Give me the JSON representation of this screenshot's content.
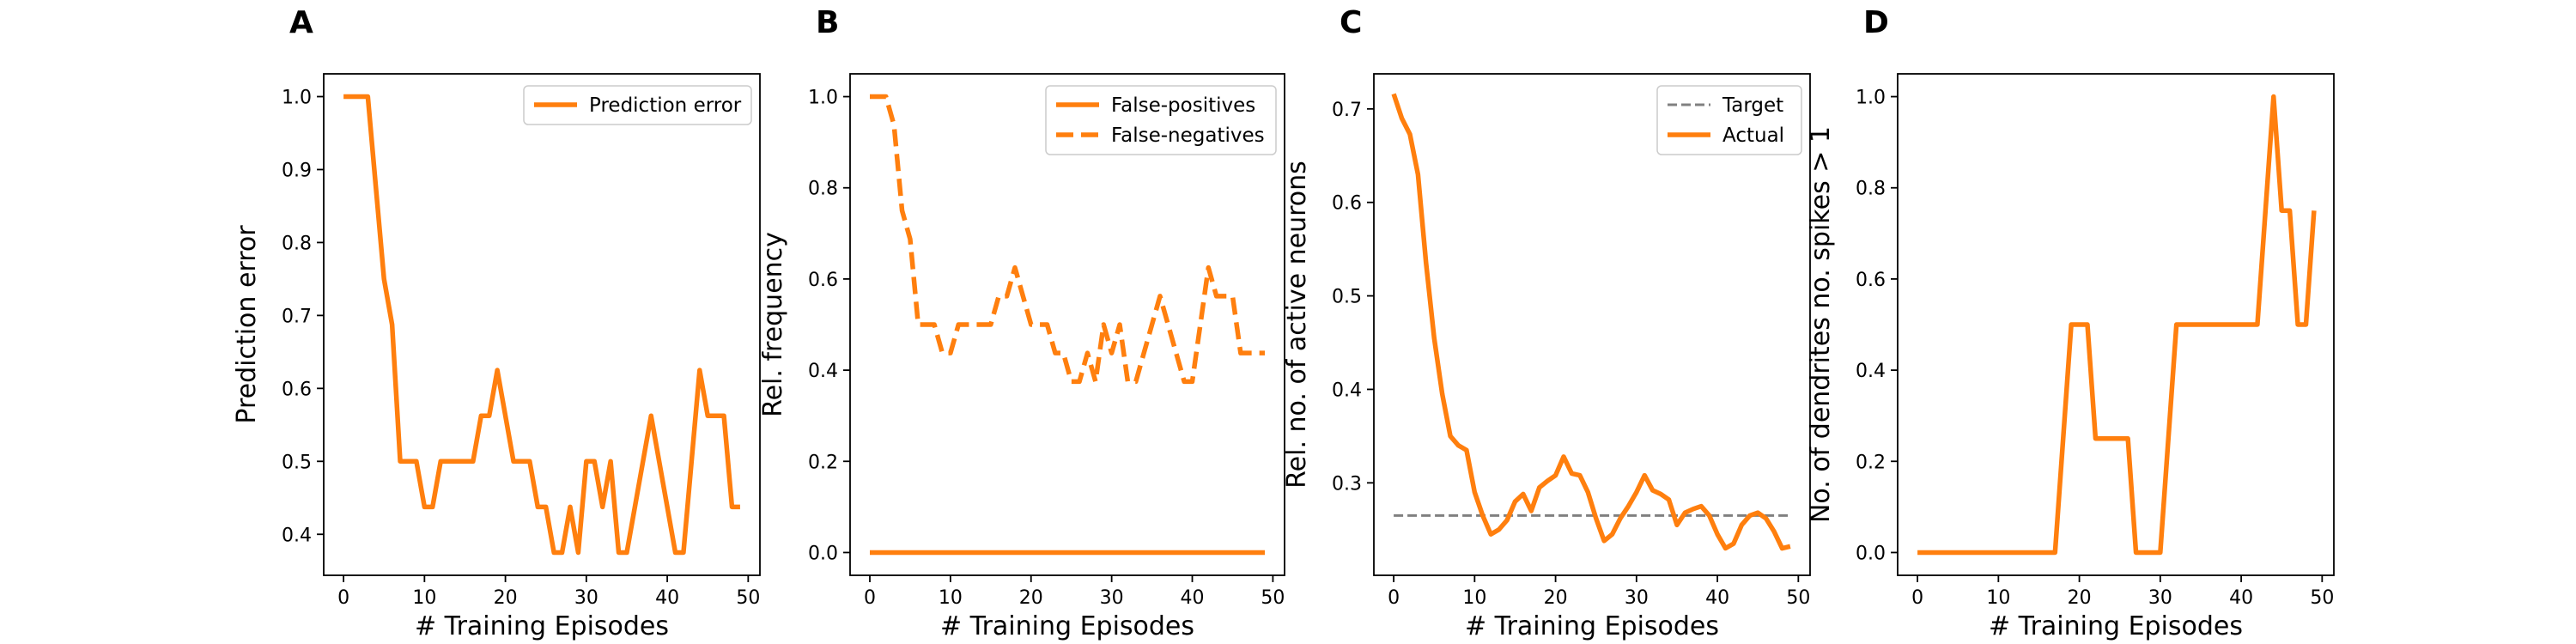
{
  "colors": {
    "orange": "#ff7f0e",
    "target_gray": "#808080",
    "axis": "#000000",
    "legend_border": "#cccccc"
  },
  "chart_data": [
    {
      "type": "line",
      "panel": "A",
      "xlabel": "# Training Episodes",
      "ylabel": "Prediction error",
      "xlim": [
        -2.45,
        51.45
      ],
      "ylim": [
        0.3438,
        1.0312
      ],
      "xticks": [
        0,
        10,
        20,
        30,
        40,
        50
      ],
      "yticks": [
        0.4,
        0.5,
        0.6,
        0.7,
        0.8,
        0.9,
        1.0
      ],
      "ytick_labels": [
        "0.4",
        "0.5",
        "0.6",
        "0.7",
        "0.8",
        "0.9",
        "1.0"
      ],
      "legend": "upper right",
      "series": [
        {
          "name": "Prediction error",
          "style": "solid",
          "color": "#ff7f0e",
          "x": [
            0,
            1,
            2,
            3,
            4,
            5,
            6,
            7,
            8,
            9,
            10,
            11,
            12,
            13,
            14,
            15,
            16,
            17,
            18,
            19,
            20,
            21,
            22,
            23,
            24,
            25,
            26,
            27,
            28,
            29,
            30,
            31,
            32,
            33,
            34,
            35,
            36,
            37,
            38,
            39,
            40,
            41,
            42,
            43,
            44,
            45,
            46,
            47,
            48,
            49
          ],
          "y": [
            1.0,
            1.0,
            1.0,
            1.0,
            0.875,
            0.75,
            0.6875,
            0.5,
            0.5,
            0.5,
            0.4375,
            0.4375,
            0.5,
            0.5,
            0.5,
            0.5,
            0.5,
            0.5625,
            0.5625,
            0.625,
            0.5625,
            0.5,
            0.5,
            0.5,
            0.4375,
            0.4375,
            0.375,
            0.375,
            0.4375,
            0.375,
            0.5,
            0.5,
            0.4375,
            0.5,
            0.375,
            0.375,
            0.4375,
            0.5,
            0.5625,
            0.5,
            0.4375,
            0.375,
            0.375,
            0.5,
            0.625,
            0.5625,
            0.5625,
            0.5625,
            0.4375,
            0.4375
          ]
        }
      ]
    },
    {
      "type": "line",
      "panel": "B",
      "xlabel": "# Training Episodes",
      "ylabel": "Rel. frequency",
      "xlim": [
        -2.45,
        51.45
      ],
      "ylim": [
        -0.05,
        1.05
      ],
      "xticks": [
        0,
        10,
        20,
        30,
        40,
        50
      ],
      "yticks": [
        0.0,
        0.2,
        0.4,
        0.6,
        0.8,
        1.0
      ],
      "ytick_labels": [
        "0.0",
        "0.2",
        "0.4",
        "0.6",
        "0.8",
        "1.0"
      ],
      "legend": "upper right",
      "series": [
        {
          "name": "False-positives",
          "style": "solid",
          "color": "#ff7f0e",
          "x": [
            0,
            49
          ],
          "y": [
            0.0,
            0.0
          ]
        },
        {
          "name": "False-negatives",
          "style": "dashed",
          "color": "#ff7f0e",
          "x": [
            0,
            1,
            2,
            3,
            4,
            5,
            6,
            7,
            8,
            9,
            10,
            11,
            12,
            13,
            14,
            15,
            16,
            17,
            18,
            19,
            20,
            21,
            22,
            23,
            24,
            25,
            26,
            27,
            28,
            29,
            30,
            31,
            32,
            33,
            34,
            35,
            36,
            37,
            38,
            39,
            40,
            41,
            42,
            43,
            44,
            45,
            46,
            47,
            48,
            49
          ],
          "y": [
            1.0,
            1.0,
            1.0,
            0.9375,
            0.75,
            0.6875,
            0.5,
            0.5,
            0.5,
            0.4375,
            0.4375,
            0.5,
            0.5,
            0.5,
            0.5,
            0.5,
            0.5625,
            0.5625,
            0.625,
            0.5625,
            0.5,
            0.5,
            0.5,
            0.4375,
            0.4375,
            0.375,
            0.375,
            0.4375,
            0.375,
            0.5,
            0.4375,
            0.5,
            0.375,
            0.375,
            0.4375,
            0.5,
            0.5625,
            0.5,
            0.4375,
            0.375,
            0.375,
            0.5,
            0.625,
            0.5625,
            0.5625,
            0.5625,
            0.4375,
            0.4375,
            0.4375,
            0.4375
          ]
        }
      ]
    },
    {
      "type": "line",
      "panel": "C",
      "xlabel": "# Training Episodes",
      "ylabel": "Rel. no. of active neurons",
      "xlim": [
        -2.45,
        51.45
      ],
      "ylim": [
        0.2011,
        0.7375
      ],
      "xticks": [
        0,
        10,
        20,
        30,
        40,
        50
      ],
      "yticks": [
        0.3,
        0.4,
        0.5,
        0.6,
        0.7
      ],
      "ytick_labels": [
        "0.3",
        "0.4",
        "0.5",
        "0.6",
        "0.7"
      ],
      "legend": "upper right",
      "series": [
        {
          "name": "Target",
          "style": "dashed",
          "color": "#808080",
          "x": [
            0,
            49
          ],
          "y": [
            0.265,
            0.265
          ]
        },
        {
          "name": "Actual",
          "style": "solid",
          "color": "#ff7f0e",
          "x": [
            0,
            1,
            2,
            3,
            4,
            5,
            6,
            7,
            8,
            9,
            10,
            11,
            12,
            13,
            14,
            15,
            16,
            17,
            18,
            19,
            20,
            21,
            22,
            23,
            24,
            25,
            26,
            27,
            28,
            29,
            30,
            31,
            32,
            33,
            34,
            35,
            36,
            37,
            38,
            39,
            40,
            41,
            42,
            43,
            44,
            45,
            46,
            47,
            48,
            49
          ],
          "y": [
            0.716,
            0.69,
            0.673,
            0.63,
            0.535,
            0.455,
            0.395,
            0.35,
            0.34,
            0.335,
            0.29,
            0.265,
            0.245,
            0.25,
            0.26,
            0.28,
            0.288,
            0.27,
            0.295,
            0.302,
            0.308,
            0.328,
            0.31,
            0.308,
            0.29,
            0.262,
            0.238,
            0.245,
            0.262,
            0.275,
            0.29,
            0.308,
            0.292,
            0.288,
            0.282,
            0.255,
            0.268,
            0.272,
            0.275,
            0.265,
            0.245,
            0.23,
            0.235,
            0.255,
            0.265,
            0.268,
            0.262,
            0.248,
            0.23,
            0.232
          ]
        }
      ]
    },
    {
      "type": "line",
      "panel": "D",
      "xlabel": "# Training Episodes",
      "ylabel": "No. of dendrites no. spikes > 1",
      "xlim": [
        -2.45,
        51.45
      ],
      "ylim": [
        -0.05,
        1.05
      ],
      "xticks": [
        0,
        10,
        20,
        30,
        40,
        50
      ],
      "yticks": [
        0.0,
        0.2,
        0.4,
        0.6,
        0.8,
        1.0
      ],
      "ytick_labels": [
        "0.0",
        "0.2",
        "0.4",
        "0.6",
        "0.8",
        "1.0"
      ],
      "legend": "none",
      "series": [
        {
          "name": "",
          "style": "solid",
          "color": "#ff7f0e",
          "x": [
            0,
            17,
            18,
            19,
            20,
            21,
            22,
            23,
            24,
            25,
            26,
            27,
            28,
            29,
            30,
            31,
            32,
            33,
            34,
            35,
            36,
            37,
            38,
            39,
            40,
            41,
            42,
            43,
            44,
            45,
            46,
            47,
            48,
            49
          ],
          "y": [
            0.0,
            0.0,
            0.25,
            0.5,
            0.5,
            0.5,
            0.25,
            0.25,
            0.25,
            0.25,
            0.25,
            0.0,
            0.0,
            0.0,
            0.0,
            0.25,
            0.5,
            0.5,
            0.5,
            0.5,
            0.5,
            0.5,
            0.5,
            0.5,
            0.5,
            0.5,
            0.5,
            0.75,
            1.0,
            0.75,
            0.75,
            0.5,
            0.5,
            0.75
          ]
        }
      ]
    }
  ]
}
